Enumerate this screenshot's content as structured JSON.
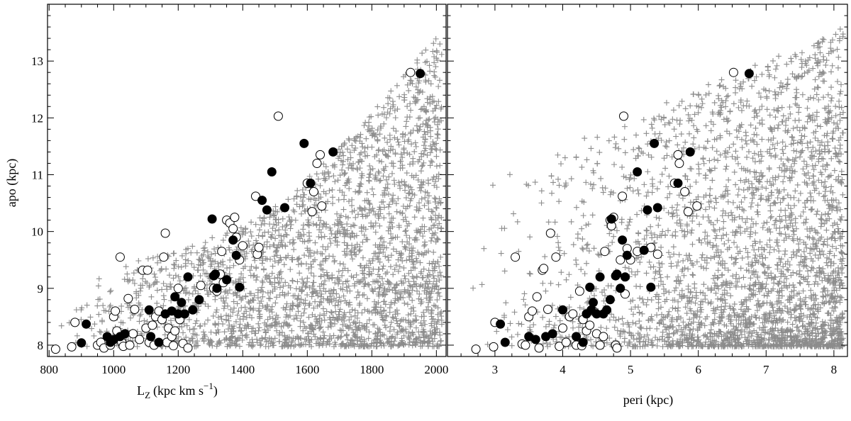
{
  "chart_data": [
    {
      "type": "scatter",
      "title": "",
      "xlabel": "L",
      "xlabel_sub": "Z",
      "xlabel_unit": "(kpc km s",
      "xlabel_unit_sup": "−1",
      "xlabel_unit_close": ")",
      "ylabel": "apo (kpc)",
      "xlim": [
        795,
        2030
      ],
      "ylim": [
        7.8,
        14.0
      ],
      "xticks": [
        800,
        1000,
        1200,
        1400,
        1600,
        1800,
        2000
      ],
      "yticks": [
        8,
        9,
        10,
        11,
        12,
        13
      ],
      "series": [
        {
          "marker": "open-circle",
          "points": [
            [
              820,
              7.93
            ],
            [
              870,
              7.97
            ],
            [
              880,
              8.4
            ],
            [
              950,
              8.0
            ],
            [
              960,
              8.05
            ],
            [
              970,
              7.95
            ],
            [
              990,
              8.0
            ],
            [
              1000,
              8.5
            ],
            [
              1005,
              8.6
            ],
            [
              1010,
              8.25
            ],
            [
              1020,
              9.55
            ],
            [
              1025,
              8.05
            ],
            [
              1030,
              7.98
            ],
            [
              1045,
              8.82
            ],
            [
              1050,
              8.0
            ],
            [
              1060,
              8.2
            ],
            [
              1065,
              8.63
            ],
            [
              1080,
              8.1
            ],
            [
              1090,
              9.32
            ],
            [
              1100,
              8.3
            ],
            [
              1105,
              9.32
            ],
            [
              1110,
              8.05
            ],
            [
              1120,
              8.35
            ],
            [
              1125,
              8.0
            ],
            [
              1130,
              8.5
            ],
            [
              1140,
              8.6
            ],
            [
              1150,
              8.45
            ],
            [
              1155,
              9.55
            ],
            [
              1160,
              9.97
            ],
            [
              1165,
              8.05
            ],
            [
              1170,
              8.3
            ],
            [
              1180,
              8.15
            ],
            [
              1185,
              7.99
            ],
            [
              1190,
              8.25
            ],
            [
              1200,
              9.0
            ],
            [
              1205,
              8.45
            ],
            [
              1215,
              8.03
            ],
            [
              1230,
              7.95
            ],
            [
              1270,
              9.05
            ],
            [
              1310,
              9.0
            ],
            [
              1320,
              8.95
            ],
            [
              1330,
              9.25
            ],
            [
              1335,
              9.65
            ],
            [
              1340,
              9.1
            ],
            [
              1350,
              10.2
            ],
            [
              1360,
              10.15
            ],
            [
              1370,
              10.05
            ],
            [
              1375,
              10.25
            ],
            [
              1380,
              9.9
            ],
            [
              1390,
              9.5
            ],
            [
              1400,
              9.75
            ],
            [
              1440,
              10.62
            ],
            [
              1445,
              9.6
            ],
            [
              1450,
              9.72
            ],
            [
              1510,
              12.03
            ],
            [
              1600,
              10.85
            ],
            [
              1615,
              10.35
            ],
            [
              1620,
              10.7
            ],
            [
              1630,
              11.2
            ],
            [
              1640,
              11.35
            ],
            [
              1645,
              10.45
            ],
            [
              1920,
              12.8
            ]
          ]
        },
        {
          "marker": "filled-circle",
          "points": [
            [
              900,
              8.04
            ],
            [
              915,
              8.37
            ],
            [
              980,
              8.15
            ],
            [
              990,
              8.05
            ],
            [
              1000,
              8.1
            ],
            [
              1020,
              8.15
            ],
            [
              1035,
              8.2
            ],
            [
              1110,
              8.62
            ],
            [
              1115,
              8.15
            ],
            [
              1140,
              8.05
            ],
            [
              1160,
              8.55
            ],
            [
              1180,
              8.6
            ],
            [
              1190,
              8.85
            ],
            [
              1200,
              8.55
            ],
            [
              1210,
              8.75
            ],
            [
              1220,
              8.55
            ],
            [
              1230,
              9.2
            ],
            [
              1245,
              8.62
            ],
            [
              1265,
              8.8
            ],
            [
              1305,
              10.22
            ],
            [
              1310,
              9.22
            ],
            [
              1315,
              9.25
            ],
            [
              1320,
              9.0
            ],
            [
              1350,
              9.15
            ],
            [
              1370,
              9.85
            ],
            [
              1380,
              9.58
            ],
            [
              1390,
              9.02
            ],
            [
              1460,
              10.55
            ],
            [
              1475,
              10.38
            ],
            [
              1490,
              11.05
            ],
            [
              1530,
              10.42
            ],
            [
              1590,
              11.55
            ],
            [
              1610,
              10.85
            ],
            [
              1680,
              11.4
            ],
            [
              1950,
              12.78
            ]
          ]
        }
      ]
    },
    {
      "type": "scatter",
      "title": "",
      "xlabel": "peri (kpc)",
      "ylabel": "",
      "xlim": [
        2.3,
        8.2
      ],
      "ylim": [
        7.8,
        14.0
      ],
      "xticks": [
        3,
        4,
        5,
        6,
        7,
        8
      ],
      "yticks": [
        8,
        9,
        10,
        11,
        12,
        13
      ],
      "series": [
        {
          "marker": "open-circle",
          "points": [
            [
              2.72,
              7.93
            ],
            [
              2.98,
              7.97
            ],
            [
              3.0,
              8.4
            ],
            [
              3.3,
              9.55
            ],
            [
              3.4,
              8.02
            ],
            [
              3.45,
              8.0
            ],
            [
              3.5,
              8.5
            ],
            [
              3.55,
              8.6
            ],
            [
              3.62,
              8.85
            ],
            [
              3.65,
              7.95
            ],
            [
              3.7,
              9.32
            ],
            [
              3.72,
              9.35
            ],
            [
              3.78,
              8.63
            ],
            [
              3.82,
              9.97
            ],
            [
              3.9,
              9.55
            ],
            [
              3.95,
              7.98
            ],
            [
              4.0,
              8.3
            ],
            [
              4.05,
              8.05
            ],
            [
              4.1,
              8.5
            ],
            [
              4.15,
              8.55
            ],
            [
              4.2,
              8.0
            ],
            [
              4.25,
              8.95
            ],
            [
              4.28,
              7.99
            ],
            [
              4.3,
              8.45
            ],
            [
              4.35,
              8.25
            ],
            [
              4.4,
              8.35
            ],
            [
              4.45,
              8.6
            ],
            [
              4.5,
              8.2
            ],
            [
              4.55,
              8.0
            ],
            [
              4.6,
              8.15
            ],
            [
              4.62,
              9.65
            ],
            [
              4.7,
              10.2
            ],
            [
              4.72,
              10.1
            ],
            [
              4.75,
              10.25
            ],
            [
              4.78,
              8.0
            ],
            [
              4.8,
              7.95
            ],
            [
              4.85,
              9.5
            ],
            [
              4.88,
              10.62
            ],
            [
              4.9,
              12.03
            ],
            [
              4.92,
              8.9
            ],
            [
              4.95,
              9.7
            ],
            [
              5.0,
              9.5
            ],
            [
              5.1,
              9.65
            ],
            [
              5.3,
              9.72
            ],
            [
              5.4,
              9.6
            ],
            [
              5.65,
              10.85
            ],
            [
              5.7,
              11.35
            ],
            [
              5.72,
              11.2
            ],
            [
              5.8,
              10.7
            ],
            [
              5.85,
              10.35
            ],
            [
              5.98,
              10.45
            ],
            [
              6.52,
              12.8
            ]
          ]
        },
        {
          "marker": "filled-circle",
          "points": [
            [
              3.08,
              8.37
            ],
            [
              3.15,
              8.05
            ],
            [
              3.5,
              8.15
            ],
            [
              3.6,
              8.1
            ],
            [
              3.75,
              8.15
            ],
            [
              3.85,
              8.2
            ],
            [
              4.0,
              8.62
            ],
            [
              4.2,
              8.15
            ],
            [
              4.3,
              8.05
            ],
            [
              4.35,
              8.55
            ],
            [
              4.4,
              9.02
            ],
            [
              4.42,
              8.62
            ],
            [
              4.45,
              8.75
            ],
            [
              4.5,
              8.55
            ],
            [
              4.55,
              9.2
            ],
            [
              4.6,
              8.55
            ],
            [
              4.65,
              8.62
            ],
            [
              4.7,
              8.8
            ],
            [
              4.72,
              10.22
            ],
            [
              4.78,
              9.22
            ],
            [
              4.8,
              9.25
            ],
            [
              4.85,
              9.0
            ],
            [
              4.88,
              9.85
            ],
            [
              4.92,
              9.2
            ],
            [
              4.95,
              9.58
            ],
            [
              5.1,
              11.05
            ],
            [
              5.2,
              9.67
            ],
            [
              5.25,
              10.38
            ],
            [
              5.3,
              9.02
            ],
            [
              5.35,
              11.55
            ],
            [
              5.4,
              10.42
            ],
            [
              5.7,
              10.85
            ],
            [
              5.88,
              11.4
            ],
            [
              6.75,
              12.78
            ]
          ]
        }
      ]
    }
  ]
}
